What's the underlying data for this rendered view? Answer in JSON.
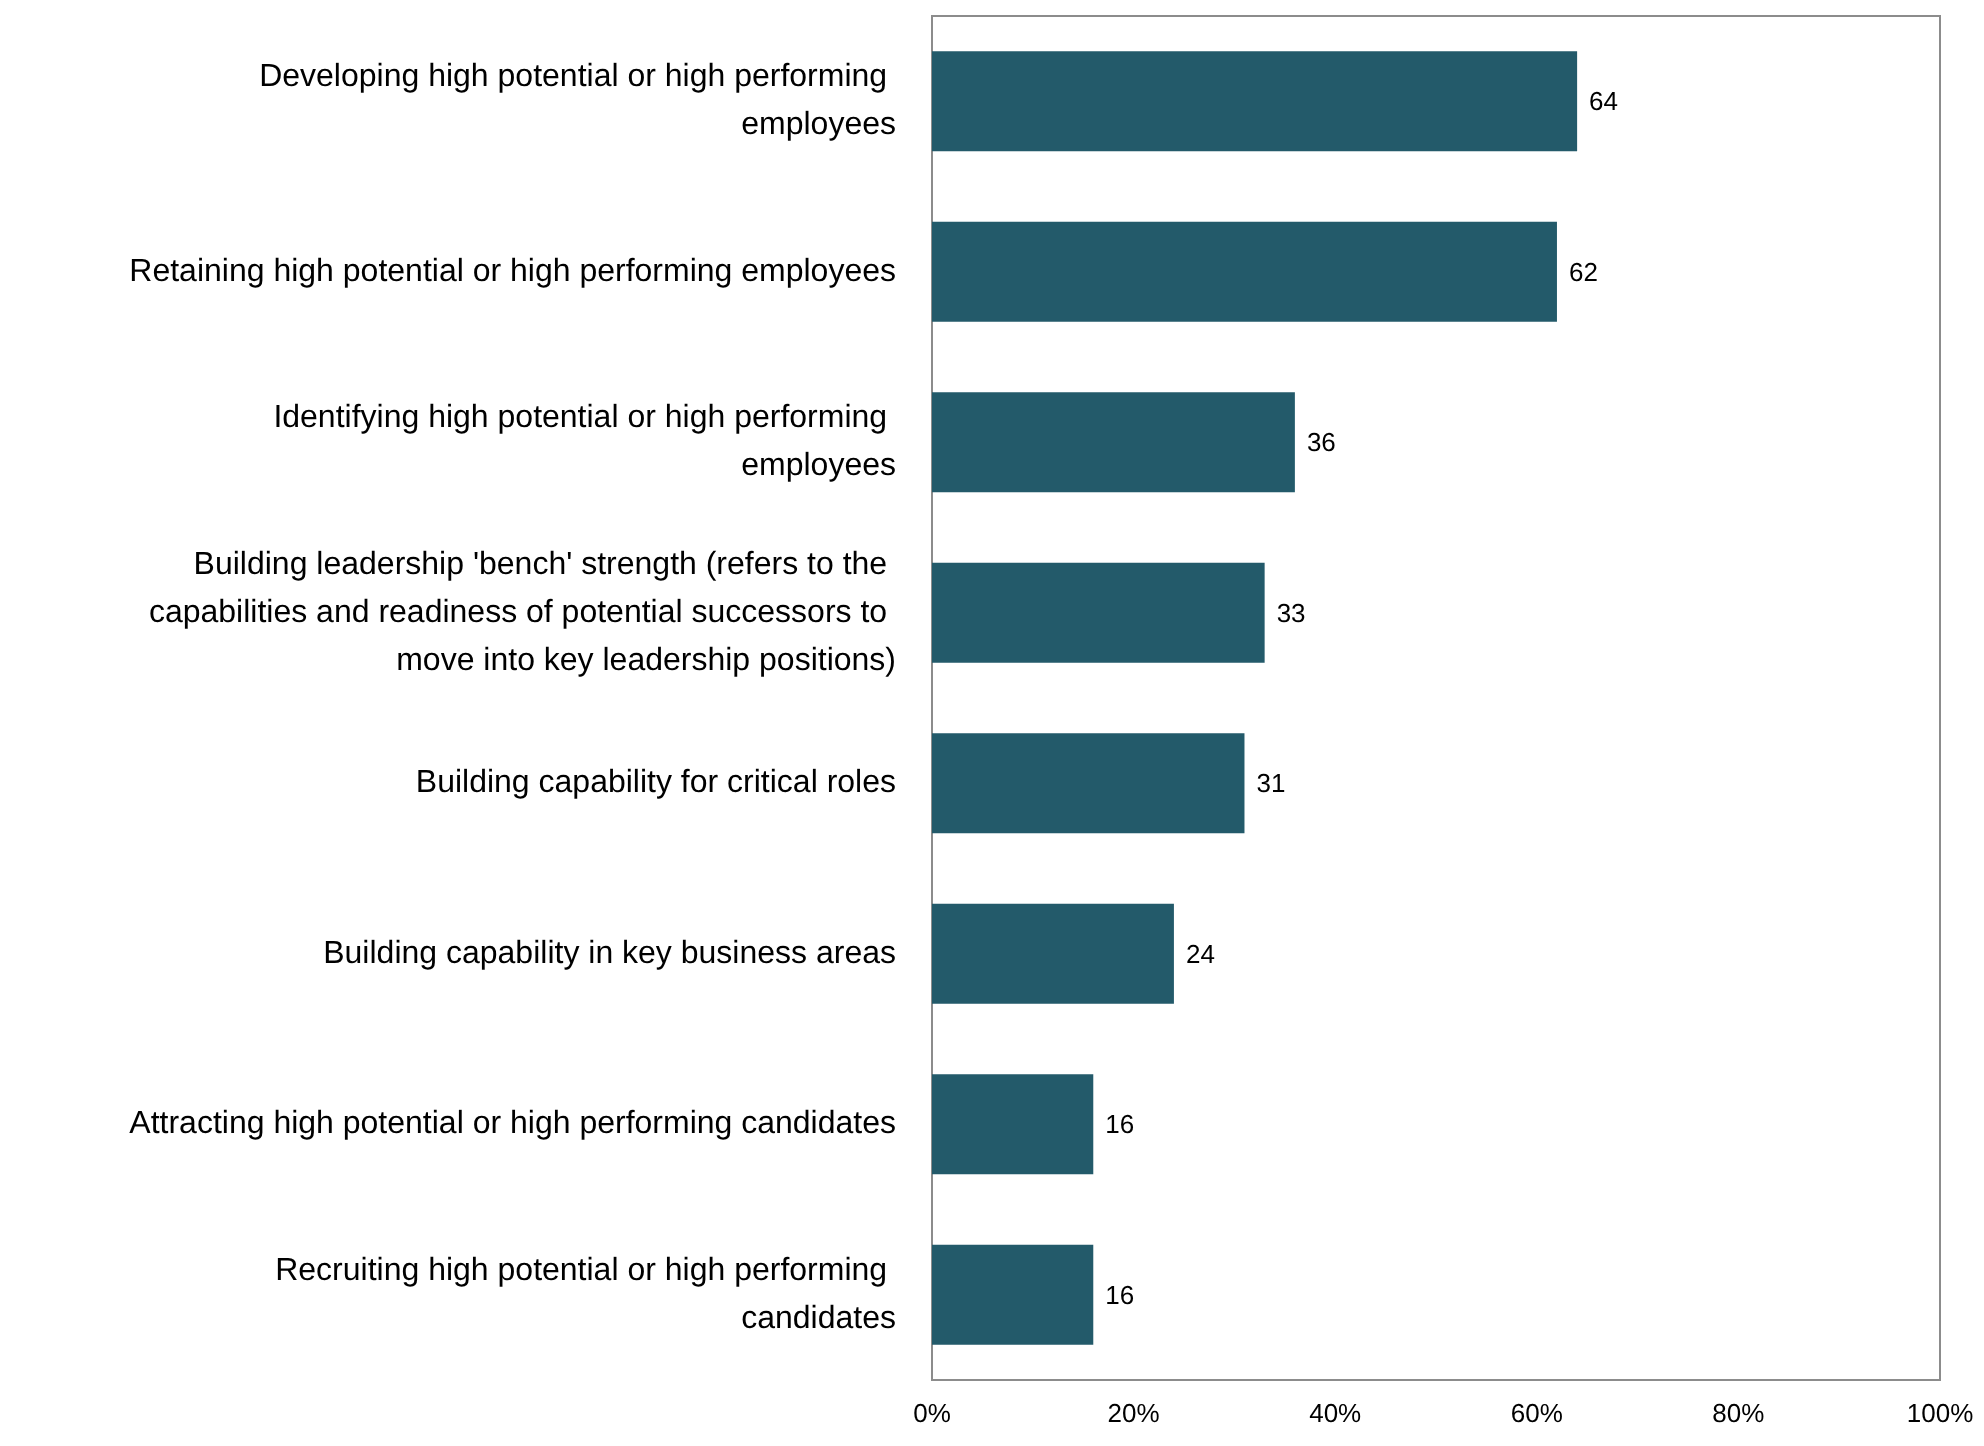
{
  "chart_data": {
    "type": "bar",
    "orientation": "horizontal",
    "categories": [
      "Developing high potential or high performing employees",
      "Retaining high potential or high performing employees",
      "Identifying high potential or high performing employees",
      "Building leadership 'bench' strength (refers to the capabilities and readiness of potential successors to move into key leadership positions)",
      "Building capability for critical roles",
      "Building capability in key business areas",
      "Attracting high potential or high performing candidates",
      "Recruiting high potential or high performing candidates"
    ],
    "values": [
      64,
      62,
      36,
      33,
      31,
      24,
      16,
      16
    ],
    "color": "#235a6a",
    "xlim": [
      0,
      100
    ],
    "xticks": [
      {
        "value": 0,
        "label": "0%"
      },
      {
        "value": 20,
        "label": "20%"
      },
      {
        "value": 40,
        "label": "40%"
      },
      {
        "value": 60,
        "label": "60%"
      },
      {
        "value": 80,
        "label": "80%"
      },
      {
        "value": 100,
        "label": "100%"
      }
    ],
    "data_labels": true,
    "grid": false
  }
}
